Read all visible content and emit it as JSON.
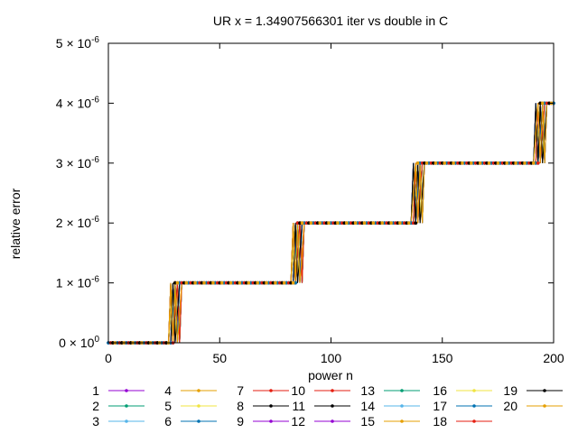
{
  "chart_data": {
    "type": "line",
    "title": "UR x = 1.34907566301 iter vs double in C",
    "xlabel": "power n",
    "ylabel": "relative error",
    "xlim": [
      0,
      200
    ],
    "ylim": [
      0,
      5e-06
    ],
    "grid": false,
    "legend_position": "bottom",
    "x_ticks": [
      {
        "value": 0,
        "label": "0"
      },
      {
        "value": 50,
        "label": "50"
      },
      {
        "value": 100,
        "label": "100"
      },
      {
        "value": 150,
        "label": "150"
      },
      {
        "value": 200,
        "label": "200"
      }
    ],
    "y_ticks": [
      {
        "value": 0,
        "mantissa": "0",
        "exp": "0"
      },
      {
        "value": 1e-06,
        "mantissa": "1",
        "exp": "-6"
      },
      {
        "value": 2e-06,
        "mantissa": "2",
        "exp": "-6"
      },
      {
        "value": 3e-06,
        "mantissa": "3",
        "exp": "-6"
      },
      {
        "value": 4e-06,
        "mantissa": "4",
        "exp": "-6"
      },
      {
        "value": 5e-06,
        "mantissa": "5",
        "exp": "-6"
      }
    ],
    "steps": [
      {
        "from": 0,
        "to": 29,
        "value": 0
      },
      {
        "from": 30,
        "to": 84,
        "value": 1e-06
      },
      {
        "from": 85,
        "to": 138,
        "value": 2e-06
      },
      {
        "from": 139,
        "to": 193,
        "value": 3e-06
      },
      {
        "from": 194,
        "to": 200,
        "value": 4e-06
      }
    ],
    "series": [
      {
        "name": "1",
        "color": "#9400d3"
      },
      {
        "name": "2",
        "color": "#009e73"
      },
      {
        "name": "3",
        "color": "#56b4e9"
      },
      {
        "name": "4",
        "color": "#e69f00"
      },
      {
        "name": "5",
        "color": "#f0e442"
      },
      {
        "name": "6",
        "color": "#0072b2"
      },
      {
        "name": "7",
        "color": "#e51e10"
      },
      {
        "name": "8",
        "color": "#000000"
      },
      {
        "name": "9",
        "color": "#9400d3"
      },
      {
        "name": "10",
        "color": "#e51e10"
      },
      {
        "name": "11",
        "color": "#000000"
      },
      {
        "name": "12",
        "color": "#9400d3"
      },
      {
        "name": "13",
        "color": "#009e73"
      },
      {
        "name": "14",
        "color": "#56b4e9"
      },
      {
        "name": "15",
        "color": "#e69f00"
      },
      {
        "name": "16",
        "color": "#f0e442"
      },
      {
        "name": "17",
        "color": "#0072b2"
      },
      {
        "name": "18",
        "color": "#e51e10"
      },
      {
        "name": "19",
        "color": "#000000"
      },
      {
        "name": "20",
        "color": "#e69f00"
      }
    ]
  }
}
